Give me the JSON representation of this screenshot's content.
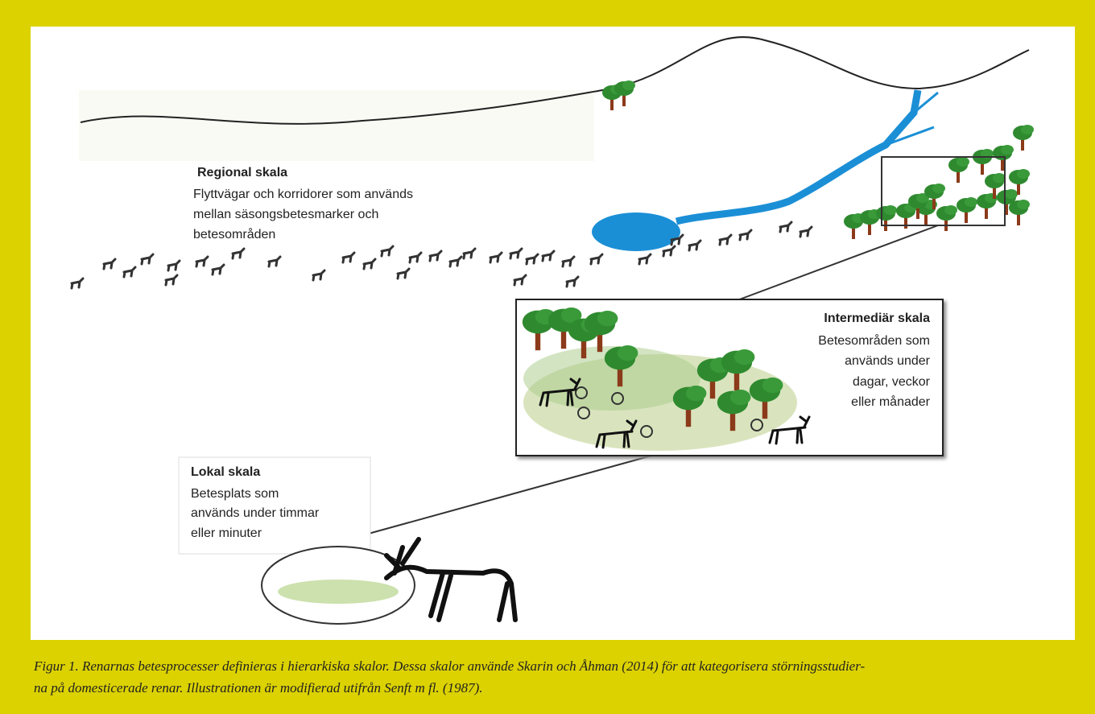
{
  "regional": {
    "title": "Regional skala",
    "lines": [
      "Flyttvägar och korridorer som används",
      "mellan säsongsbetesmarker och",
      "betesområden"
    ]
  },
  "intermediate": {
    "title": "Intermediär skala",
    "lines": [
      "Betesområden som",
      "används under",
      "dagar, veckor",
      "eller månader"
    ]
  },
  "local": {
    "title": "Lokal skala",
    "lines": [
      "Betesplats som",
      "används under timmar",
      "eller minuter"
    ]
  },
  "caption": {
    "lines": [
      "Figur 1. Renarnas betesprocesser definieras i hierarkiska skalor. Dessa skalor använde Skarin och Åhman (2014) för att kategorisera störningsstudier-",
      "na på domesticerade renar. Illustrationen är modifierad utifrån Senft m fl. (1987)."
    ]
  }
}
